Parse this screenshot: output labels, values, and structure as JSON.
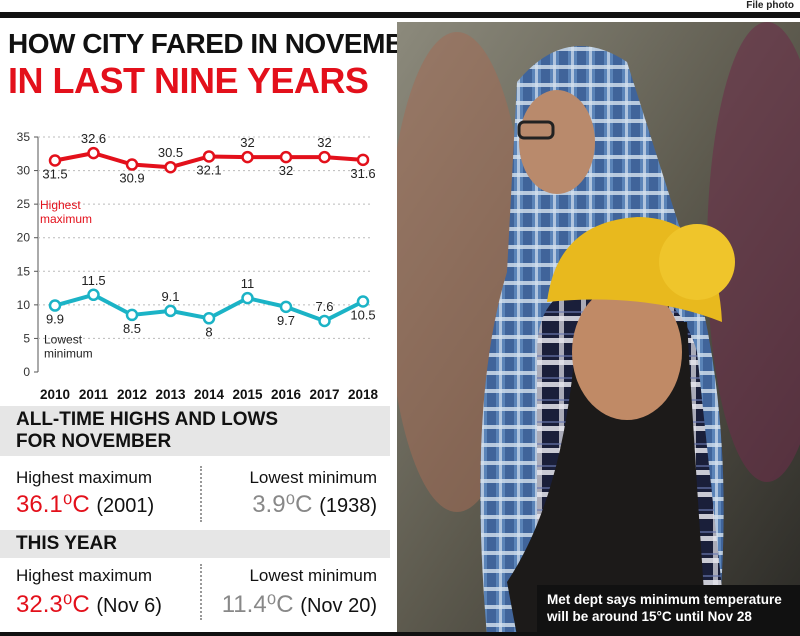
{
  "credit": "File photo",
  "title_line1": "HOW CITY FARED IN NOVEMBER",
  "title_line2": "IN LAST NINE YEARS",
  "chart_data": {
    "type": "line",
    "x": [
      "2010",
      "2011",
      "2012",
      "2013",
      "2014",
      "2015",
      "2016",
      "2017",
      "2018"
    ],
    "ylim": [
      0,
      35
    ],
    "yticks": [
      0,
      5,
      10,
      15,
      20,
      25,
      30,
      35
    ],
    "series": [
      {
        "name": "Highest maximum",
        "values": [
          31.5,
          32.6,
          30.9,
          30.5,
          32.1,
          32,
          32,
          32,
          31.6
        ],
        "color": "#e3101b"
      },
      {
        "name": "Lowest minimum",
        "values": [
          9.9,
          11.5,
          8.5,
          9.1,
          8,
          11,
          9.7,
          7.6,
          10.5
        ],
        "color": "#1bb3c6"
      }
    ],
    "labels_high": [
      "31.5",
      "32.6",
      "30.9",
      "30.5",
      "32.1",
      "32",
      "32",
      "32",
      "31.6"
    ],
    "labels_low": [
      "9.9",
      "11.5",
      "8.5",
      "9.1",
      "8",
      "11",
      "9.7",
      "7.6",
      "10.5"
    ],
    "legend_high": [
      "Highest",
      "maximum"
    ],
    "legend_low": [
      "Lowest",
      "minimum"
    ],
    "grid": false
  },
  "alltime": {
    "heading_line1": "ALL-TIME HIGHS AND LOWS",
    "heading_line2": "FOR NOVEMBER",
    "high_label": "Highest maximum",
    "high_value": "36.1⁰C",
    "high_year": "(2001)",
    "low_label": "Lowest minimum",
    "low_value": "3.9⁰C",
    "low_year": "(1938)"
  },
  "thisyear": {
    "heading": "THIS YEAR",
    "high_label": "Highest maximum",
    "high_value": "32.3⁰C",
    "high_date": "(Nov 6)",
    "low_label": "Lowest minimum",
    "low_value": "11.4⁰C",
    "low_date": "(Nov 20)"
  },
  "photo_caption_line1": "Met dept says minimum temperature",
  "photo_caption_line2": "will be around 15°C until Nov 28",
  "colors": {
    "red": "#e3101b",
    "cyan": "#1bb3c6",
    "grey": "#888888"
  }
}
